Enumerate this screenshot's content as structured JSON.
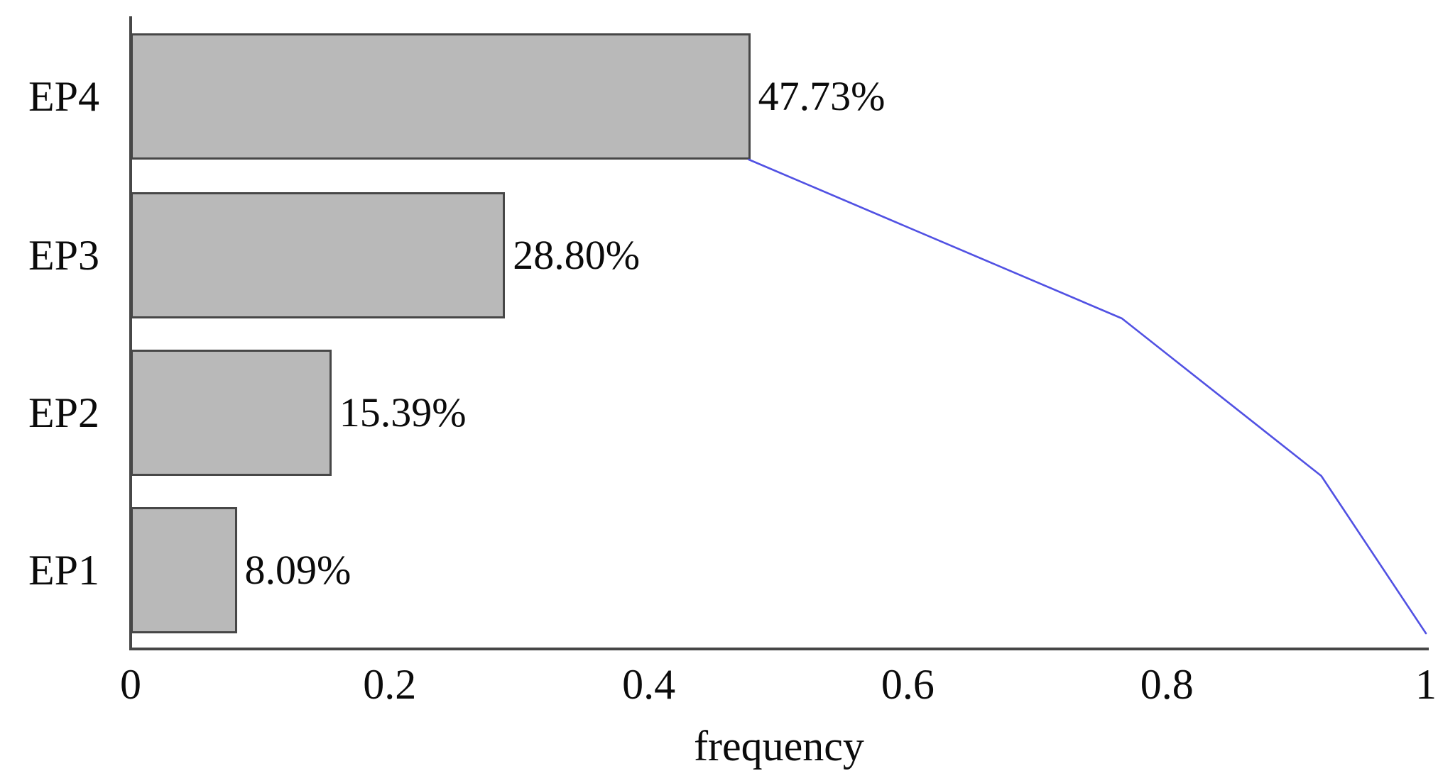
{
  "chart_data": {
    "type": "bar",
    "orientation": "horizontal",
    "title": "",
    "xlabel": "frequency",
    "ylabel": "",
    "xlim": [
      0,
      1
    ],
    "grid": false,
    "legend": null,
    "categories": [
      "EP4",
      "EP3",
      "EP2",
      "EP1"
    ],
    "values": [
      0.4773,
      0.288,
      0.1539,
      0.0809
    ],
    "bar_value_labels": [
      "47.73%",
      "28.80%",
      "15.39%",
      "8.09%"
    ],
    "x_tick_values": [
      0,
      0.2,
      0.4,
      0.6,
      0.8,
      1
    ],
    "x_tick_labels": [
      "0",
      "0.2",
      "0.4",
      "0.6",
      "0.8",
      "1"
    ],
    "series": [
      {
        "name": "frequency-bars",
        "type": "bar",
        "values": [
          0.4773,
          0.288,
          0.1539,
          0.0809
        ]
      },
      {
        "name": "cumulative-line",
        "type": "line",
        "x": [
          0.4773,
          0.7653,
          0.9192,
          1.0
        ]
      }
    ],
    "colors": {
      "bar_fill": "#b9b9b9",
      "bar_border": "#474747",
      "axis": "#474747",
      "cumulative_line": "#5151e3",
      "text": "#0b0b0b",
      "background": "#ffffff"
    }
  }
}
